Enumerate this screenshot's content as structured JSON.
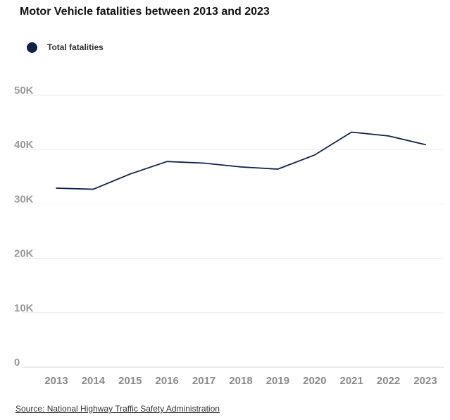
{
  "chart_data": {
    "type": "line",
    "title": "Motor Vehicle fatalities between 2013 and 2023",
    "categories": [
      "2013",
      "2014",
      "2015",
      "2016",
      "2017",
      "2018",
      "2019",
      "2020",
      "2021",
      "2022",
      "2023"
    ],
    "series": [
      {
        "name": "Total fatalities",
        "values": [
          32900,
          32700,
          35500,
          37800,
          37500,
          36800,
          36400,
          39000,
          43200,
          42500,
          40900
        ],
        "color": "#0f2147"
      }
    ],
    "y_ticks": [
      0,
      10000,
      20000,
      30000,
      40000,
      50000
    ],
    "y_tick_labels": [
      "0",
      "10K",
      "20K",
      "30K",
      "40K",
      "50K"
    ],
    "ylim": [
      0,
      50000
    ],
    "xlabel": "",
    "ylabel": "",
    "grid": true,
    "legend": "top-left"
  },
  "source": "Source: National Highway Traffic Safety Administration"
}
